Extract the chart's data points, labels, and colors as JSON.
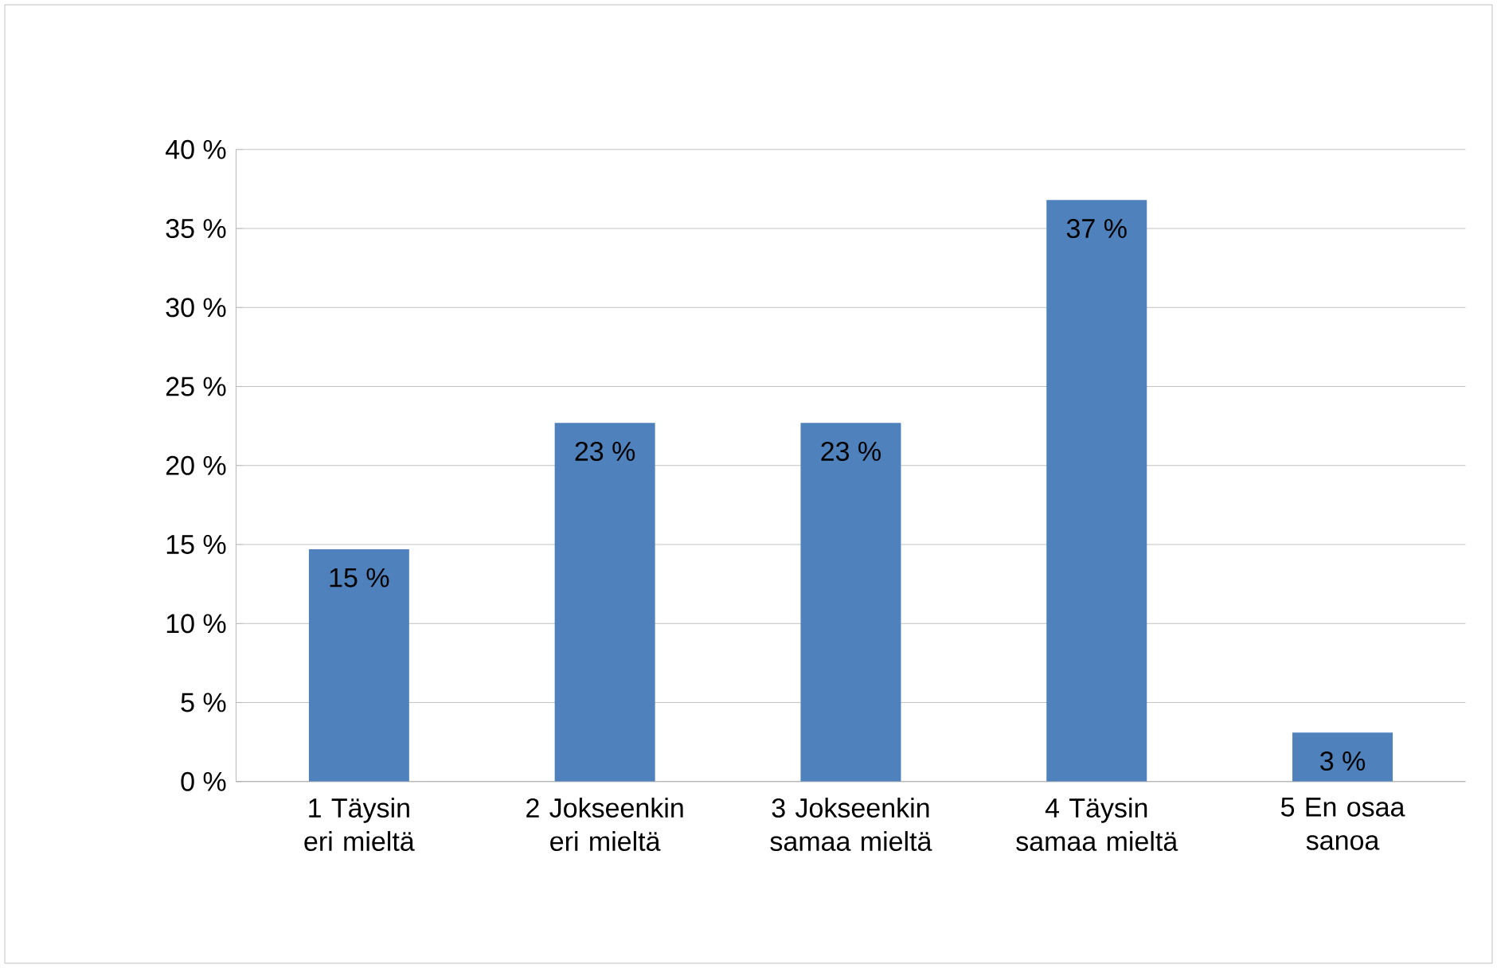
{
  "chart_data": {
    "type": "bar",
    "categories": [
      "1 Täysin eri mieltä",
      "2 Jokseenkin eri mieltä",
      "3 Jokseenkin samaa mieltä",
      "4 Täysin samaa mieltä",
      "5 En osaa sanoa"
    ],
    "values": [
      14.7,
      22.7,
      22.7,
      36.8,
      3.1
    ],
    "value_labels": [
      "15 %",
      "23 %",
      "23 %",
      "37 %",
      "3 %"
    ],
    "color": "#4f81bd",
    "ylim": [
      0,
      40
    ],
    "yticks": [
      {
        "value": 0,
        "label": "0 %"
      },
      {
        "value": 5,
        "label": "5 %"
      },
      {
        "value": 10,
        "label": "10 %"
      },
      {
        "value": 15,
        "label": "15 %"
      },
      {
        "value": 20,
        "label": "20 %"
      },
      {
        "value": 25,
        "label": "25 %"
      },
      {
        "value": 30,
        "label": "30 %"
      },
      {
        "value": 35,
        "label": "35 %"
      },
      {
        "value": 40,
        "label": "40 %"
      }
    ],
    "grid": "y"
  }
}
